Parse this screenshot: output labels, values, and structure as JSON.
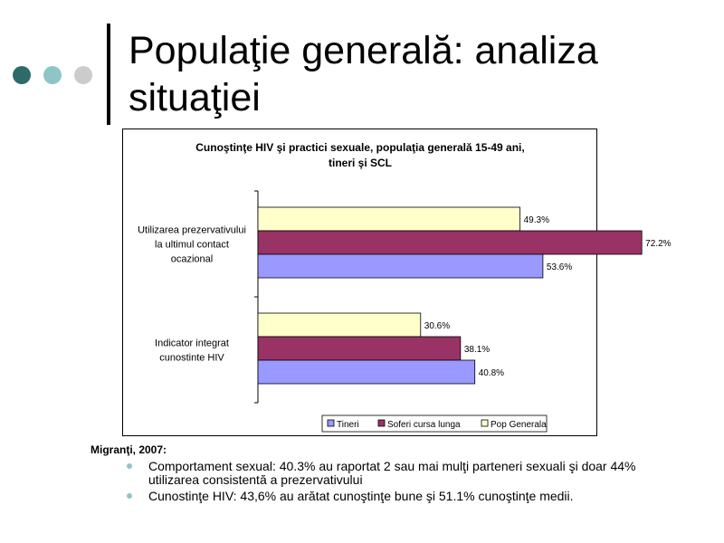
{
  "slide": {
    "title_line1": "Populaţie generală: analiza",
    "title_line2": "situaţiei",
    "dot_colors": [
      "#2d6b6b",
      "#8fc5c8",
      "#cccccc"
    ]
  },
  "chart_data": {
    "type": "bar",
    "orientation": "horizontal",
    "title_line1": "Cunoştinţe HIV şi practici sexuale, populaţia generală 15-49 ani,",
    "title_line2": "tineri şi SCL",
    "categories": [
      [
        "Utilizarea prezervativului",
        "la ultimul contact",
        "ocazional"
      ],
      [
        "Indicator integrat",
        "cunostinte HIV"
      ]
    ],
    "series": [
      {
        "name": "Pop Generala",
        "color": "#ffffcc",
        "values": [
          49.3,
          30.6
        ]
      },
      {
        "name": "Soferi cursa lunga",
        "color": "#993366",
        "values": [
          72.2,
          38.1
        ]
      },
      {
        "name": "Tineri",
        "color": "#9999ff",
        "values": [
          53.6,
          40.8
        ]
      }
    ],
    "legend_order": [
      "Tineri",
      "Soferi cursa lunga",
      "Pop Generala"
    ],
    "data_label_suffix": "%",
    "xlim": [
      0,
      80
    ],
    "grid": false,
    "legend_position": "bottom"
  },
  "notes": {
    "heading": "Migranţi, 2007:",
    "items": [
      "Comportament sexual: 40.3% au raportat 2 sau mai mulţi parteneri sexuali şi doar 44% utilizarea consistentă a prezervativului",
      "Cunostinţe HIV: 43,6% au arătat cunoştinţe bune şi 51.1% cunoştinţe medii."
    ]
  }
}
